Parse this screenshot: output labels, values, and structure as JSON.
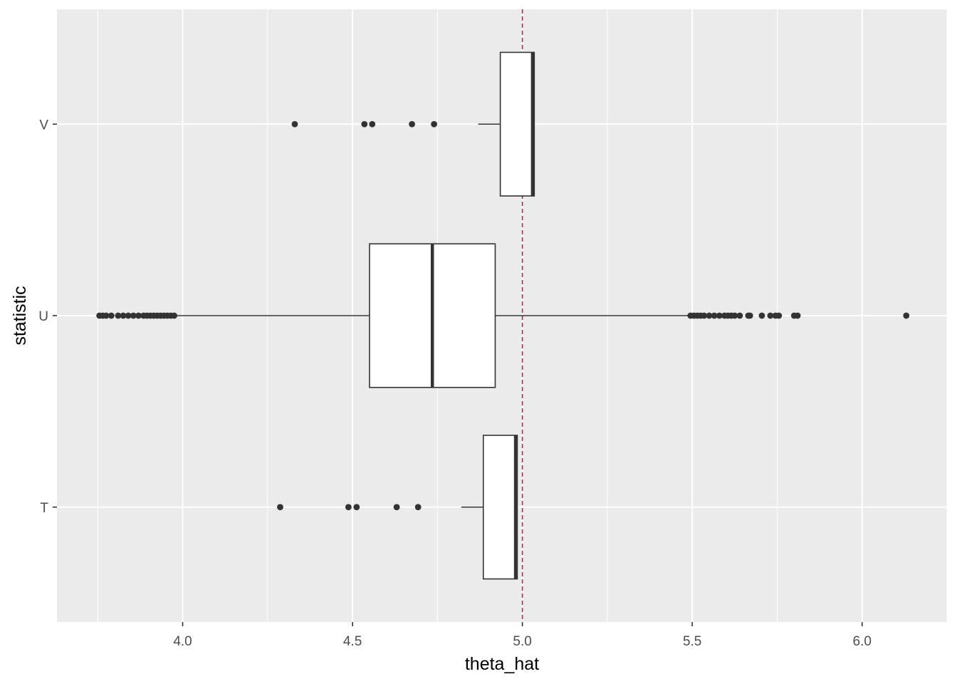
{
  "chart_data": {
    "type": "boxplot",
    "orientation": "horizontal",
    "xlabel": "theta_hat",
    "ylabel": "statistic",
    "xlim": [
      3.63,
      6.25
    ],
    "x_ticks": [
      4.0,
      4.5,
      5.0,
      5.5,
      6.0
    ],
    "x_tick_labels": [
      "4.0",
      "4.5",
      "5.0",
      "5.5",
      "6.0"
    ],
    "categories": [
      "T",
      "U",
      "V"
    ],
    "grid": true,
    "panel_background": "#ebebeb",
    "grid_color": "#ffffff",
    "box_fill": "#ffffff",
    "line_color": "#333333",
    "reference_line": {
      "x": 5.0,
      "style": "dashed",
      "color": "#b4245a"
    },
    "boxes": [
      {
        "category": "T",
        "whisker_low": 4.82,
        "q1": 4.885,
        "median": 4.98,
        "q3": 4.985,
        "whisker_high": 4.985,
        "outliers": [
          4.287,
          4.488,
          4.512,
          4.63,
          4.693
        ]
      },
      {
        "category": "U",
        "whisker_low": 3.98,
        "q1": 4.55,
        "median": 4.735,
        "q3": 4.92,
        "whisker_high": 5.49,
        "outliers": [
          3.755,
          3.765,
          3.775,
          3.79,
          3.81,
          3.825,
          3.84,
          3.855,
          3.87,
          3.885,
          3.895,
          3.905,
          3.915,
          3.925,
          3.935,
          3.945,
          3.955,
          3.965,
          3.975,
          5.495,
          5.505,
          5.515,
          5.525,
          5.535,
          5.55,
          5.565,
          5.58,
          5.595,
          5.605,
          5.615,
          5.625,
          5.64,
          5.665,
          5.67,
          5.705,
          5.73,
          5.745,
          5.755,
          5.8,
          5.81,
          6.13
        ]
      },
      {
        "category": "V",
        "whisker_low": 4.87,
        "q1": 4.935,
        "median": 5.03,
        "q3": 5.035,
        "whisker_high": 5.035,
        "outliers": [
          4.33,
          4.535,
          4.558,
          4.675,
          4.74
        ]
      }
    ]
  }
}
